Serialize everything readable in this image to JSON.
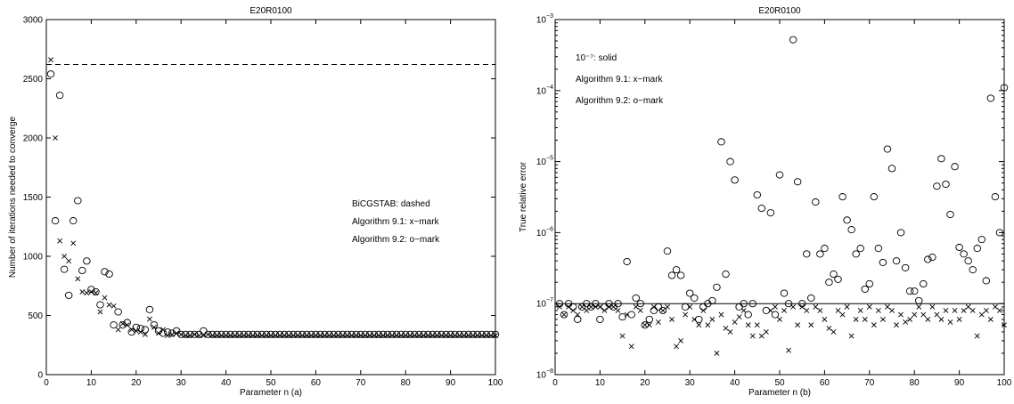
{
  "chart_data": [
    {
      "type": "scatter",
      "title": "E20R0100",
      "xlabel": "Parameter n  (a)",
      "ylabel": "Number of iterations needed to converge",
      "xlim": [
        0,
        100
      ],
      "ylim": [
        0,
        3000
      ],
      "xscale": "linear",
      "yscale": "linear",
      "x_ticks": [
        "0",
        "10",
        "20",
        "30",
        "40",
        "50",
        "60",
        "70",
        "80",
        "90",
        "100"
      ],
      "y_ticks": [
        "0",
        "500",
        "1000",
        "1500",
        "2000",
        "2500",
        "3000"
      ],
      "annotations": [
        "BiCGSTAB: dashed",
        "Algorithm 9.1: x−mark",
        "Algorithm 9.2: o−mark"
      ],
      "reference_line": {
        "style": "dashed",
        "y": 2620
      },
      "series": [
        {
          "marker": "x",
          "x": [
            1,
            2,
            3,
            4,
            5,
            6,
            7,
            8,
            9,
            10,
            11,
            12,
            13,
            14,
            15,
            16,
            17,
            18,
            19,
            20,
            21,
            22,
            23,
            24,
            25,
            26,
            27,
            28,
            29,
            30,
            31,
            32,
            33,
            34,
            35,
            36,
            37,
            38,
            39,
            40,
            41,
            42,
            43,
            44,
            45,
            46,
            47,
            48,
            49,
            50,
            51,
            52,
            53,
            54,
            55,
            56,
            57,
            58,
            59,
            60,
            61,
            62,
            63,
            64,
            65,
            66,
            67,
            68,
            69,
            70,
            71,
            72,
            73,
            74,
            75,
            76,
            77,
            78,
            79,
            80,
            81,
            82,
            83,
            84,
            85,
            86,
            87,
            88,
            89,
            90,
            91,
            92,
            93,
            94,
            95,
            96,
            97,
            98,
            99,
            100
          ],
          "y": [
            2660,
            2000,
            1130,
            1000,
            960,
            1110,
            810,
            700,
            690,
            700,
            690,
            530,
            650,
            590,
            580,
            380,
            430,
            420,
            380,
            370,
            360,
            340,
            470,
            400,
            350,
            380,
            330,
            340,
            350,
            340,
            330,
            330,
            340,
            330,
            330,
            340,
            330,
            330,
            330,
            330,
            330,
            330,
            330,
            330,
            330,
            330,
            330,
            330,
            330,
            330,
            330,
            330,
            330,
            330,
            330,
            330,
            330,
            330,
            330,
            330,
            330,
            330,
            330,
            330,
            330,
            330,
            330,
            330,
            330,
            330,
            330,
            330,
            330,
            330,
            330,
            330,
            330,
            330,
            330,
            330,
            330,
            330,
            330,
            330,
            330,
            330,
            330,
            330,
            330,
            330,
            330,
            330,
            330,
            330,
            330,
            330,
            330,
            330,
            330,
            330
          ]
        },
        {
          "marker": "o",
          "x": [
            1,
            2,
            3,
            4,
            5,
            6,
            7,
            8,
            9,
            10,
            11,
            12,
            13,
            14,
            15,
            16,
            17,
            18,
            19,
            20,
            21,
            22,
            23,
            24,
            25,
            26,
            27,
            28,
            29,
            30,
            31,
            32,
            33,
            34,
            35,
            36,
            37,
            38,
            39,
            40,
            41,
            42,
            43,
            44,
            45,
            46,
            47,
            48,
            49,
            50,
            51,
            52,
            53,
            54,
            55,
            56,
            57,
            58,
            59,
            60,
            61,
            62,
            63,
            64,
            65,
            66,
            67,
            68,
            69,
            70,
            71,
            72,
            73,
            74,
            75,
            76,
            77,
            78,
            79,
            80,
            81,
            82,
            83,
            84,
            85,
            86,
            87,
            88,
            89,
            90,
            91,
            92,
            93,
            94,
            95,
            96,
            97,
            98,
            99,
            100
          ],
          "y": [
            2540,
            1300,
            2360,
            890,
            670,
            1300,
            1470,
            880,
            960,
            720,
            700,
            590,
            870,
            850,
            420,
            530,
            420,
            440,
            360,
            400,
            390,
            380,
            550,
            420,
            370,
            350,
            360,
            350,
            370,
            340,
            340,
            340,
            340,
            340,
            370,
            340,
            340,
            340,
            340,
            340,
            340,
            340,
            340,
            340,
            340,
            340,
            340,
            340,
            340,
            340,
            340,
            340,
            340,
            340,
            340,
            340,
            340,
            340,
            340,
            340,
            340,
            340,
            340,
            340,
            340,
            340,
            340,
            340,
            340,
            340,
            340,
            340,
            340,
            340,
            340,
            340,
            340,
            340,
            340,
            340,
            340,
            340,
            340,
            340,
            340,
            340,
            340,
            340,
            340,
            340,
            340,
            340,
            340,
            340,
            340,
            340,
            340,
            340,
            340,
            340
          ]
        }
      ]
    },
    {
      "type": "scatter",
      "title": "E20R0100",
      "xlabel": "Parameter n  (b)",
      "ylabel": "True relative error",
      "xlim": [
        0,
        100
      ],
      "ylim": [
        1e-08,
        0.001
      ],
      "xscale": "linear",
      "yscale": "log",
      "x_ticks": [
        "0",
        "10",
        "20",
        "30",
        "40",
        "50",
        "60",
        "70",
        "80",
        "90",
        "100"
      ],
      "y_tick_exponents": [
        "-8",
        "-7",
        "-6",
        "-5",
        "-4",
        "-3"
      ],
      "annotations": [
        "10⁻⁷: solid",
        "Algorithm 9.1: x−mark",
        "Algorithm 9.2: o−mark"
      ],
      "reference_line": {
        "style": "solid",
        "y": 1e-07
      },
      "series": [
        {
          "marker": "x",
          "x": [
            1,
            2,
            3,
            4,
            5,
            6,
            7,
            8,
            9,
            10,
            11,
            12,
            13,
            14,
            15,
            16,
            17,
            18,
            19,
            20,
            21,
            22,
            23,
            24,
            25,
            26,
            27,
            28,
            29,
            30,
            31,
            32,
            33,
            34,
            35,
            36,
            37,
            38,
            39,
            40,
            41,
            42,
            43,
            44,
            45,
            46,
            47,
            48,
            49,
            50,
            51,
            52,
            53,
            54,
            55,
            56,
            57,
            58,
            59,
            60,
            61,
            62,
            63,
            64,
            65,
            66,
            67,
            68,
            69,
            70,
            71,
            72,
            73,
            74,
            75,
            76,
            77,
            78,
            79,
            80,
            81,
            82,
            83,
            84,
            85,
            86,
            87,
            88,
            89,
            90,
            91,
            92,
            93,
            94,
            95,
            96,
            97,
            98,
            99,
            100
          ],
          "y": [
            9e-08,
            7e-08,
            9e-08,
            8e-08,
            7e-08,
            9e-08,
            8e-08,
            9e-08,
            9e-08,
            9e-08,
            8e-08,
            9e-08,
            9e-08,
            8e-08,
            3.5e-08,
            7e-08,
            2.5e-08,
            9e-08,
            8e-08,
            5e-08,
            5e-08,
            9e-08,
            5.5e-08,
            8e-08,
            9e-08,
            6e-08,
            2.5e-08,
            3e-08,
            7e-08,
            9e-08,
            6e-08,
            5e-08,
            8e-08,
            5e-08,
            6e-08,
            2e-08,
            7e-08,
            4.5e-08,
            4e-08,
            5.5e-08,
            6.5e-08,
            8e-08,
            5e-08,
            3.5e-08,
            5e-08,
            3.5e-08,
            4e-08,
            8e-08,
            9e-08,
            6e-08,
            8e-08,
            2.2e-08,
            9e-08,
            5e-08,
            9e-08,
            8e-08,
            5e-08,
            9e-08,
            8e-08,
            6e-08,
            4.5e-08,
            4e-08,
            8e-08,
            7e-08,
            9e-08,
            3.5e-08,
            6e-08,
            8e-08,
            6e-08,
            9e-08,
            5e-08,
            8e-08,
            6e-08,
            9e-08,
            8e-08,
            5e-08,
            7e-08,
            5.5e-08,
            6e-08,
            7e-08,
            9e-08,
            7e-08,
            6e-08,
            9e-08,
            7e-08,
            6e-08,
            8e-08,
            5.5e-08,
            8e-08,
            6e-08,
            8e-08,
            9e-08,
            8e-08,
            3.5e-08,
            7e-08,
            8e-08,
            6e-08,
            9e-08,
            8e-08,
            5e-08
          ]
        },
        {
          "marker": "o",
          "x": [
            1,
            2,
            3,
            4,
            5,
            6,
            7,
            8,
            9,
            10,
            11,
            12,
            13,
            14,
            15,
            16,
            17,
            18,
            19,
            20,
            21,
            22,
            23,
            24,
            25,
            26,
            27,
            28,
            29,
            30,
            31,
            32,
            33,
            34,
            35,
            36,
            37,
            38,
            39,
            40,
            41,
            42,
            43,
            44,
            45,
            46,
            47,
            48,
            49,
            50,
            51,
            52,
            53,
            54,
            55,
            56,
            57,
            58,
            59,
            60,
            61,
            62,
            63,
            64,
            65,
            66,
            67,
            68,
            69,
            70,
            71,
            72,
            73,
            74,
            75,
            76,
            77,
            78,
            79,
            80,
            81,
            82,
            83,
            84,
            85,
            86,
            87,
            88,
            89,
            90,
            91,
            92,
            93,
            94,
            95,
            96,
            97,
            98,
            99,
            100
          ],
          "y": [
            1e-07,
            7e-08,
            1e-07,
            9e-08,
            6e-08,
            9e-08,
            1e-07,
            9e-08,
            1e-07,
            6e-08,
            9e-08,
            1e-07,
            9e-08,
            1e-07,
            6.5e-08,
            3.9e-07,
            7e-08,
            1.2e-07,
            1e-07,
            5e-08,
            6e-08,
            8e-08,
            9e-08,
            8e-08,
            5.5e-07,
            2.5e-07,
            3e-07,
            2.5e-07,
            9e-08,
            1.4e-07,
            1.2e-07,
            6e-08,
            9e-08,
            1e-07,
            1.1e-07,
            1.7e-07,
            1.9e-05,
            2.6e-07,
            1e-05,
            5.5e-06,
            9e-08,
            1e-07,
            7e-08,
            1e-07,
            3.4e-06,
            2.2e-06,
            8e-08,
            1.9e-06,
            7e-08,
            6.5e-06,
            1.4e-07,
            1e-07,
            0.00052,
            5.2e-06,
            1e-07,
            5e-07,
            1.2e-07,
            2.7e-06,
            5e-07,
            6e-07,
            2e-07,
            2.6e-07,
            2.2e-07,
            3.2e-06,
            1.5e-06,
            1.1e-06,
            5e-07,
            6e-07,
            1.6e-07,
            1.9e-07,
            3.2e-06,
            6e-07,
            3.8e-07,
            1.5e-05,
            8e-06,
            4e-07,
            1e-06,
            3.2e-07,
            1.5e-07,
            1.5e-07,
            1.1e-07,
            1.9e-07,
            4.2e-07,
            4.5e-07,
            4.5e-06,
            1.1e-05,
            4.8e-06,
            1.8e-06,
            8.5e-06,
            6.2e-07,
            5e-07,
            4e-07,
            3e-07,
            6e-07,
            8e-07,
            2.1e-07,
            7.8e-05,
            3.2e-06,
            1e-06,
            0.00011
          ]
        }
      ]
    }
  ]
}
